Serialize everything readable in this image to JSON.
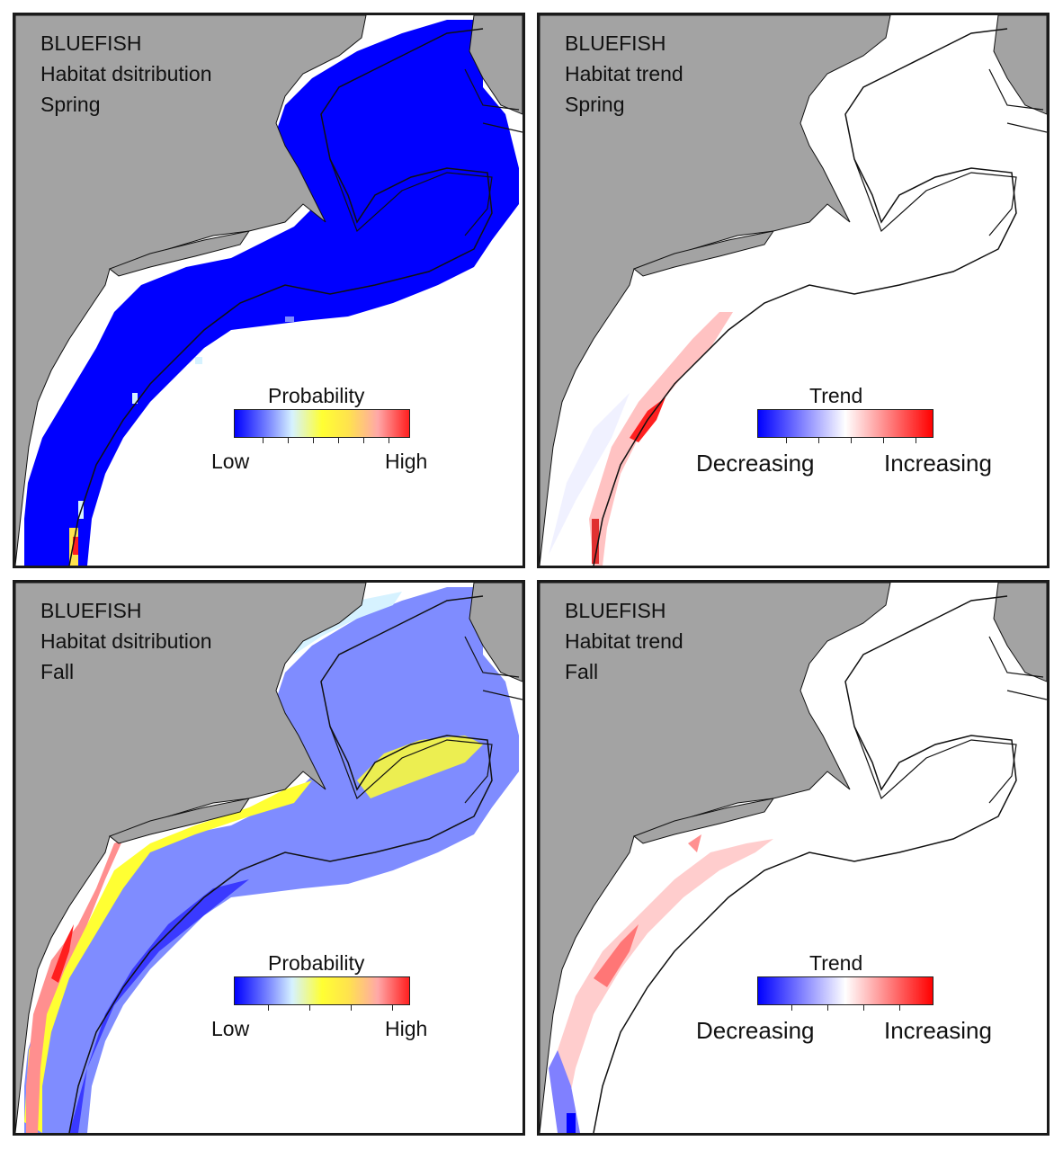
{
  "panels": [
    {
      "id": "tl",
      "species": "BLUEFISH",
      "metric": "Habitat dsitribution",
      "season": "Spring",
      "legend": {
        "title": "Probability",
        "low": "Low",
        "high": "High",
        "scale": "probability"
      }
    },
    {
      "id": "tr",
      "species": "BLUEFISH",
      "metric": "Habitat trend",
      "season": "Spring",
      "legend": {
        "title": "Trend",
        "low": "Decreasing",
        "high": "Increasing",
        "scale": "trend"
      }
    },
    {
      "id": "bl",
      "species": "BLUEFISH",
      "metric": "Habitat dsitribution",
      "season": "Fall",
      "legend": {
        "title": "Probability",
        "low": "Low",
        "high": "High",
        "scale": "probability"
      }
    },
    {
      "id": "br",
      "species": "BLUEFISH",
      "metric": "Habitat trend",
      "season": "Fall",
      "legend": {
        "title": "Trend",
        "low": "Decreasing",
        "high": "Increasing",
        "scale": "trend"
      }
    }
  ],
  "colors": {
    "land": "#a3a3a3",
    "water": "#ffffff",
    "outline": "#111111",
    "probability_scale": [
      "#0000ff",
      "#7f8cff",
      "#d6f2ff",
      "#ffff33",
      "#ffe34d",
      "#ffa8a8",
      "#ff1f1f"
    ],
    "trend_scale": [
      "#0000ff",
      "#8080ff",
      "#ffffff",
      "#ff8080",
      "#ff0000"
    ]
  }
}
